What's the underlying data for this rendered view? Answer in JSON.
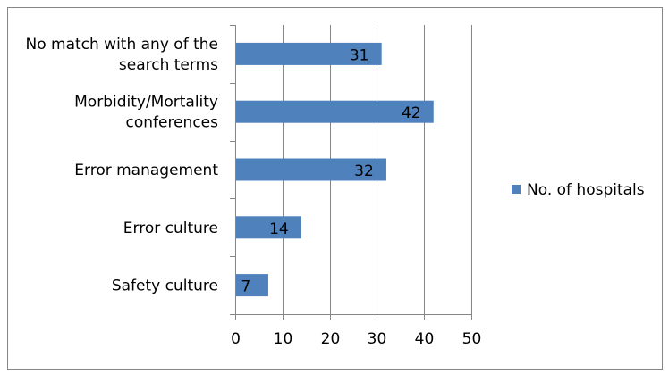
{
  "chart_data": {
    "type": "bar",
    "orientation": "horizontal",
    "categories": [
      "No match with any of the search terms",
      "Morbidity/Mortality conferences",
      "Error management",
      "Error culture",
      "Safety culture"
    ],
    "category_lines": [
      [
        "No match with any of the",
        "search terms"
      ],
      [
        "Morbidity/Mortality",
        "conferences"
      ],
      [
        "Error management"
      ],
      [
        "Error culture"
      ],
      [
        "Safety culture"
      ]
    ],
    "series": [
      {
        "name": "No. of hospitals",
        "values": [
          31,
          42,
          32,
          14,
          7
        ],
        "color": "#4f81bd"
      }
    ],
    "xlim": [
      0,
      50
    ],
    "x_ticks": [
      0,
      10,
      20,
      30,
      40,
      50
    ],
    "grid": "vertical-major",
    "legend_position": "right",
    "data_labels": true,
    "title": "",
    "xlabel": "",
    "ylabel": ""
  }
}
